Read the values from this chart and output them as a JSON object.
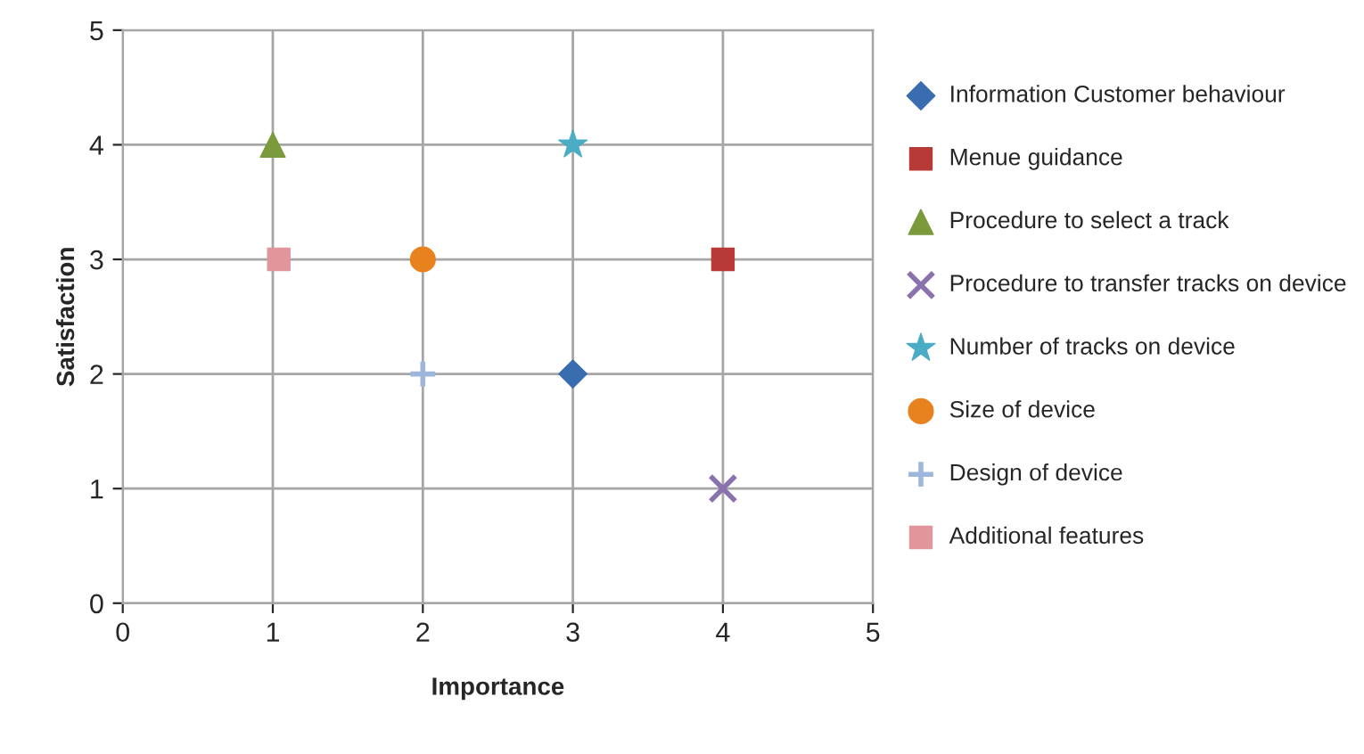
{
  "chart_data": {
    "type": "scatter",
    "xlabel": "Importance",
    "ylabel": "Satisfaction",
    "xlim": [
      0,
      5
    ],
    "xticks": [
      0,
      1,
      2,
      3,
      4,
      5
    ],
    "ylim": [
      0,
      5
    ],
    "yticks": [
      0,
      1,
      2,
      3,
      4,
      5
    ],
    "grid": true,
    "legend": "right",
    "series": [
      {
        "name": "Information Customer behaviour",
        "color": "#3a6db0",
        "marker": "diamond",
        "x": [
          3
        ],
        "values": [
          2
        ]
      },
      {
        "name": "Menue guidance",
        "color": "#b83a36",
        "marker": "square",
        "x": [
          4
        ],
        "values": [
          3
        ]
      },
      {
        "name": "Procedure to select a track",
        "color": "#7a9a3c",
        "marker": "triangle",
        "x": [
          1
        ],
        "values": [
          4
        ]
      },
      {
        "name": "Procedure to transfer tracks on device",
        "color": "#8a72ac",
        "marker": "cross",
        "x": [
          4
        ],
        "values": [
          1
        ]
      },
      {
        "name": "Number of tracks on device",
        "color": "#4bacc6",
        "marker": "star",
        "x": [
          3
        ],
        "values": [
          4
        ]
      },
      {
        "name": "Size of device",
        "color": "#e8821e",
        "marker": "circle",
        "x": [
          2
        ],
        "values": [
          3
        ]
      },
      {
        "name": "Design of device",
        "color": "#9db6dc",
        "marker": "plus",
        "x": [
          2
        ],
        "values": [
          2
        ]
      },
      {
        "name": "Additional features",
        "color": "#e0969a",
        "marker": "square",
        "x": [
          1.04
        ],
        "values": [
          3
        ]
      }
    ]
  }
}
